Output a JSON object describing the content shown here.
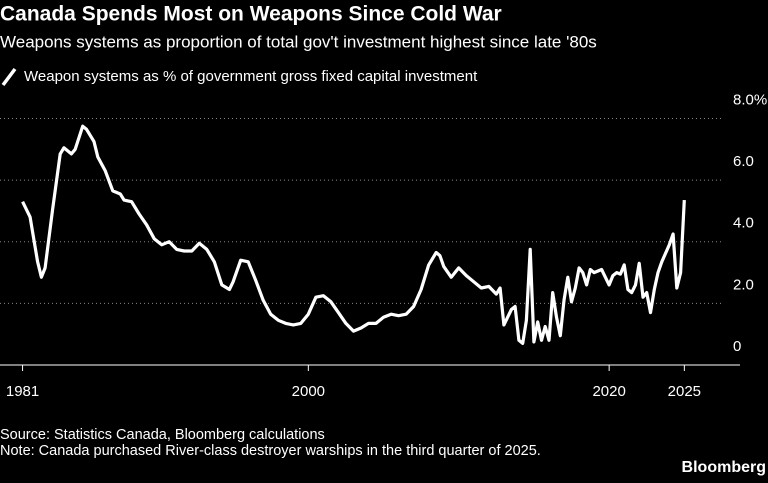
{
  "chart_data": {
    "type": "line",
    "title": "Canada Spends Most on Weapons Since Cold War",
    "subtitle": "Weapons systems as proportion of total gov't investment highest since late '80s",
    "series": [
      {
        "name": "Weapon systems as % of government gross fixed capital investment",
        "color": "#ffffff",
        "x": [
          1981,
          1981.5,
          1982,
          1982.25,
          1982.5,
          1983,
          1983.5,
          1983.75,
          1984.25,
          1984.5,
          1985,
          1985.25,
          1985.75,
          1986,
          1986.5,
          1987,
          1987.5,
          1987.75,
          1988.25,
          1988.75,
          1989.25,
          1989.75,
          1990.25,
          1990.75,
          1991.25,
          1991.75,
          1992.25,
          1992.75,
          1993.25,
          1993.75,
          1994.25,
          1994.75,
          1995,
          1995.5,
          1996,
          1996.5,
          1997,
          1997.5,
          1998,
          1998.5,
          1999,
          1999.5,
          2000,
          2000.5,
          2001,
          2001.5,
          2002,
          2002.5,
          2003,
          2003.5,
          2004,
          2004.5,
          2005,
          2005.5,
          2006,
          2006.5,
          2007,
          2007.5,
          2008,
          2008.5,
          2008.75,
          2009,
          2009.5,
          2010,
          2010.5,
          2011,
          2011.5,
          2012,
          2012.5,
          2012.75,
          2013,
          2013.5,
          2013.75,
          2014,
          2014.25,
          2014.5,
          2014.75,
          2015,
          2015.25,
          2015.5,
          2015.75,
          2016,
          2016.25,
          2016.5,
          2016.75,
          2017,
          2017.25,
          2017.5,
          2017.75,
          2018,
          2018.25,
          2018.5,
          2018.75,
          2019,
          2019.5,
          2020,
          2020.25,
          2020.5,
          2020.75,
          2021,
          2021.25,
          2021.5,
          2021.75,
          2022,
          2022.25,
          2022.5,
          2022.75,
          2023,
          2023.25,
          2023.5,
          2024,
          2024.25,
          2024.5,
          2024.75,
          2025
        ],
        "values": [
          5.3,
          4.8,
          3.35,
          2.85,
          3.15,
          5.05,
          6.85,
          7.05,
          6.85,
          7.0,
          7.75,
          7.65,
          7.25,
          6.75,
          6.3,
          5.65,
          5.55,
          5.35,
          5.3,
          4.9,
          4.55,
          4.1,
          3.9,
          4.0,
          3.75,
          3.7,
          3.7,
          3.95,
          3.75,
          3.35,
          2.6,
          2.45,
          2.7,
          3.4,
          3.35,
          2.75,
          2.1,
          1.65,
          1.45,
          1.35,
          1.3,
          1.35,
          1.65,
          2.2,
          2.25,
          2.05,
          1.7,
          1.35,
          1.1,
          1.2,
          1.35,
          1.35,
          1.55,
          1.65,
          1.6,
          1.65,
          1.9,
          2.45,
          3.25,
          3.65,
          3.55,
          3.2,
          2.85,
          3.15,
          2.9,
          2.7,
          2.5,
          2.55,
          2.3,
          2.5,
          1.3,
          1.8,
          1.9,
          0.8,
          0.7,
          1.45,
          3.75,
          0.75,
          1.4,
          0.8,
          1.25,
          0.8,
          2.35,
          1.55,
          0.95,
          2.1,
          2.85,
          2.05,
          2.5,
          3.15,
          3.0,
          2.6,
          3.1,
          3.0,
          3.1,
          2.6,
          2.9,
          3.0,
          2.95,
          3.25,
          2.45,
          2.35,
          2.6,
          3.3,
          2.2,
          2.35,
          1.7,
          2.45,
          3.0,
          3.35,
          3.9,
          4.25,
          2.5,
          3.0,
          5.35
        ]
      }
    ],
    "xlim": [
      1979.5,
      2028.7
    ],
    "xticks": [
      1981,
      2000,
      2020,
      2025
    ],
    "ylim": [
      0,
      8.6
    ],
    "yticks": [
      0,
      {
        "value": 2,
        "label": "2.0"
      },
      {
        "value": 4,
        "label": "4.0"
      },
      {
        "value": 6,
        "label": "6.0"
      },
      {
        "value": 8,
        "label": "8.0%"
      }
    ],
    "grid": true,
    "source": "Source: Statistics Canada, Bloomberg calculations",
    "note": "Note: Canada purchased River-class destroyer warships in the third quarter of 2025.",
    "brand": "Bloomberg"
  }
}
